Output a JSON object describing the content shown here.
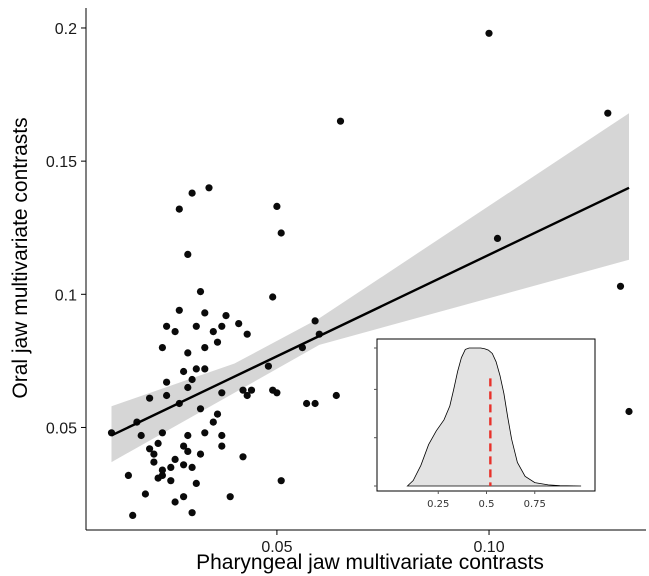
{
  "chart_data": [
    {
      "type": "scatter",
      "xlabel": "Pharyngeal jaw multivariate contrasts",
      "ylabel": "Oral jaw multivariate contrasts",
      "xlim": [
        0.005,
        0.137
      ],
      "ylim": [
        0.0115,
        0.2075
      ],
      "x_ticks": [
        0.05,
        0.1
      ],
      "x_tick_labels": [
        "0.05",
        "0.10"
      ],
      "y_ticks": [
        0.05,
        0.1,
        0.15,
        0.2
      ],
      "y_tick_labels": [
        "0.05",
        "0.1",
        "0.15",
        "0.2"
      ],
      "grid": false,
      "points": [
        [
          0.011,
          0.048
        ],
        [
          0.015,
          0.032
        ],
        [
          0.016,
          0.017
        ],
        [
          0.017,
          0.052
        ],
        [
          0.018,
          0.047
        ],
        [
          0.019,
          0.025
        ],
        [
          0.02,
          0.061
        ],
        [
          0.02,
          0.042
        ],
        [
          0.021,
          0.037
        ],
        [
          0.021,
          0.04
        ],
        [
          0.022,
          0.031
        ],
        [
          0.022,
          0.044
        ],
        [
          0.023,
          0.034
        ],
        [
          0.023,
          0.048
        ],
        [
          0.023,
          0.032
        ],
        [
          0.023,
          0.08
        ],
        [
          0.024,
          0.067
        ],
        [
          0.024,
          0.062
        ],
        [
          0.024,
          0.088
        ],
        [
          0.025,
          0.03
        ],
        [
          0.025,
          0.035
        ],
        [
          0.026,
          0.022
        ],
        [
          0.026,
          0.086
        ],
        [
          0.026,
          0.038
        ],
        [
          0.027,
          0.059
        ],
        [
          0.027,
          0.094
        ],
        [
          0.027,
          0.132
        ],
        [
          0.028,
          0.024
        ],
        [
          0.028,
          0.036
        ],
        [
          0.028,
          0.043
        ],
        [
          0.028,
          0.071
        ],
        [
          0.029,
          0.115
        ],
        [
          0.029,
          0.065
        ],
        [
          0.029,
          0.078
        ],
        [
          0.029,
          0.047
        ],
        [
          0.029,
          0.041
        ],
        [
          0.03,
          0.138
        ],
        [
          0.03,
          0.035
        ],
        [
          0.03,
          0.018
        ],
        [
          0.03,
          0.068
        ],
        [
          0.031,
          0.029
        ],
        [
          0.031,
          0.072
        ],
        [
          0.031,
          0.088
        ],
        [
          0.032,
          0.101
        ],
        [
          0.032,
          0.04
        ],
        [
          0.032,
          0.057
        ],
        [
          0.033,
          0.093
        ],
        [
          0.033,
          0.08
        ],
        [
          0.033,
          0.048
        ],
        [
          0.033,
          0.072
        ],
        [
          0.034,
          0.14
        ],
        [
          0.035,
          0.086
        ],
        [
          0.035,
          0.052
        ],
        [
          0.036,
          0.055
        ],
        [
          0.036,
          0.082
        ],
        [
          0.037,
          0.043
        ],
        [
          0.037,
          0.047
        ],
        [
          0.037,
          0.063
        ],
        [
          0.037,
          0.088
        ],
        [
          0.038,
          0.092
        ],
        [
          0.039,
          0.024
        ],
        [
          0.041,
          0.089
        ],
        [
          0.042,
          0.064
        ],
        [
          0.042,
          0.039
        ],
        [
          0.043,
          0.085
        ],
        [
          0.043,
          0.062
        ],
        [
          0.044,
          0.064
        ],
        [
          0.048,
          0.073
        ],
        [
          0.049,
          0.099
        ],
        [
          0.049,
          0.064
        ],
        [
          0.05,
          0.063
        ],
        [
          0.05,
          0.133
        ],
        [
          0.051,
          0.123
        ],
        [
          0.051,
          0.03
        ],
        [
          0.056,
          0.08
        ],
        [
          0.057,
          0.059
        ],
        [
          0.059,
          0.09
        ],
        [
          0.059,
          0.059
        ],
        [
          0.06,
          0.085
        ],
        [
          0.064,
          0.062
        ],
        [
          0.065,
          0.165
        ],
        [
          0.1,
          0.198
        ],
        [
          0.102,
          0.121
        ],
        [
          0.128,
          0.168
        ],
        [
          0.131,
          0.103
        ],
        [
          0.133,
          0.056
        ]
      ],
      "fit_line": {
        "x": [
          0.011,
          0.133
        ],
        "y": [
          0.047,
          0.14
        ]
      },
      "confidence_band": {
        "x": [
          0.011,
          0.04,
          0.06,
          0.133
        ],
        "lower": [
          0.037,
          0.063,
          0.081,
          0.113
        ],
        "upper": [
          0.058,
          0.074,
          0.091,
          0.168
        ]
      }
    },
    {
      "type": "area",
      "inset": true,
      "xlim": [
        0,
        1
      ],
      "x_ticks": [
        0.25,
        0.5,
        0.75
      ],
      "x_tick_labels": [
        "0.25",
        "0.5",
        "0.75"
      ],
      "y_ticks": [
        0,
        0.35,
        0.7,
        1.0
      ],
      "y_tick_labels": [
        "",
        "",
        "",
        ""
      ],
      "density": {
        "x": [
          0.09,
          0.12,
          0.16,
          0.2,
          0.24,
          0.28,
          0.31,
          0.33,
          0.35,
          0.37,
          0.39,
          0.41,
          0.43,
          0.45,
          0.47,
          0.49,
          0.51,
          0.53,
          0.55,
          0.57,
          0.59,
          0.61,
          0.63,
          0.66,
          0.7,
          0.75,
          0.82,
          0.88,
          0.99
        ],
        "y": [
          0.0,
          0.04,
          0.15,
          0.3,
          0.4,
          0.48,
          0.58,
          0.7,
          0.83,
          0.93,
          0.99,
          1.0,
          1.0,
          1.0,
          1.0,
          0.995,
          0.985,
          0.96,
          0.9,
          0.8,
          0.67,
          0.5,
          0.34,
          0.17,
          0.07,
          0.025,
          0.008,
          0.002,
          0.0
        ]
      },
      "vline": {
        "x": 0.52,
        "y_top": 0.78,
        "color": "#e8312a",
        "style": "dashed"
      }
    }
  ],
  "colors": {
    "point": "#0a0a0a",
    "fit_line": "#000000",
    "band": "#d6d6d6",
    "inset_fill": "#e3e3e3",
    "median_line": "#e8312a"
  }
}
